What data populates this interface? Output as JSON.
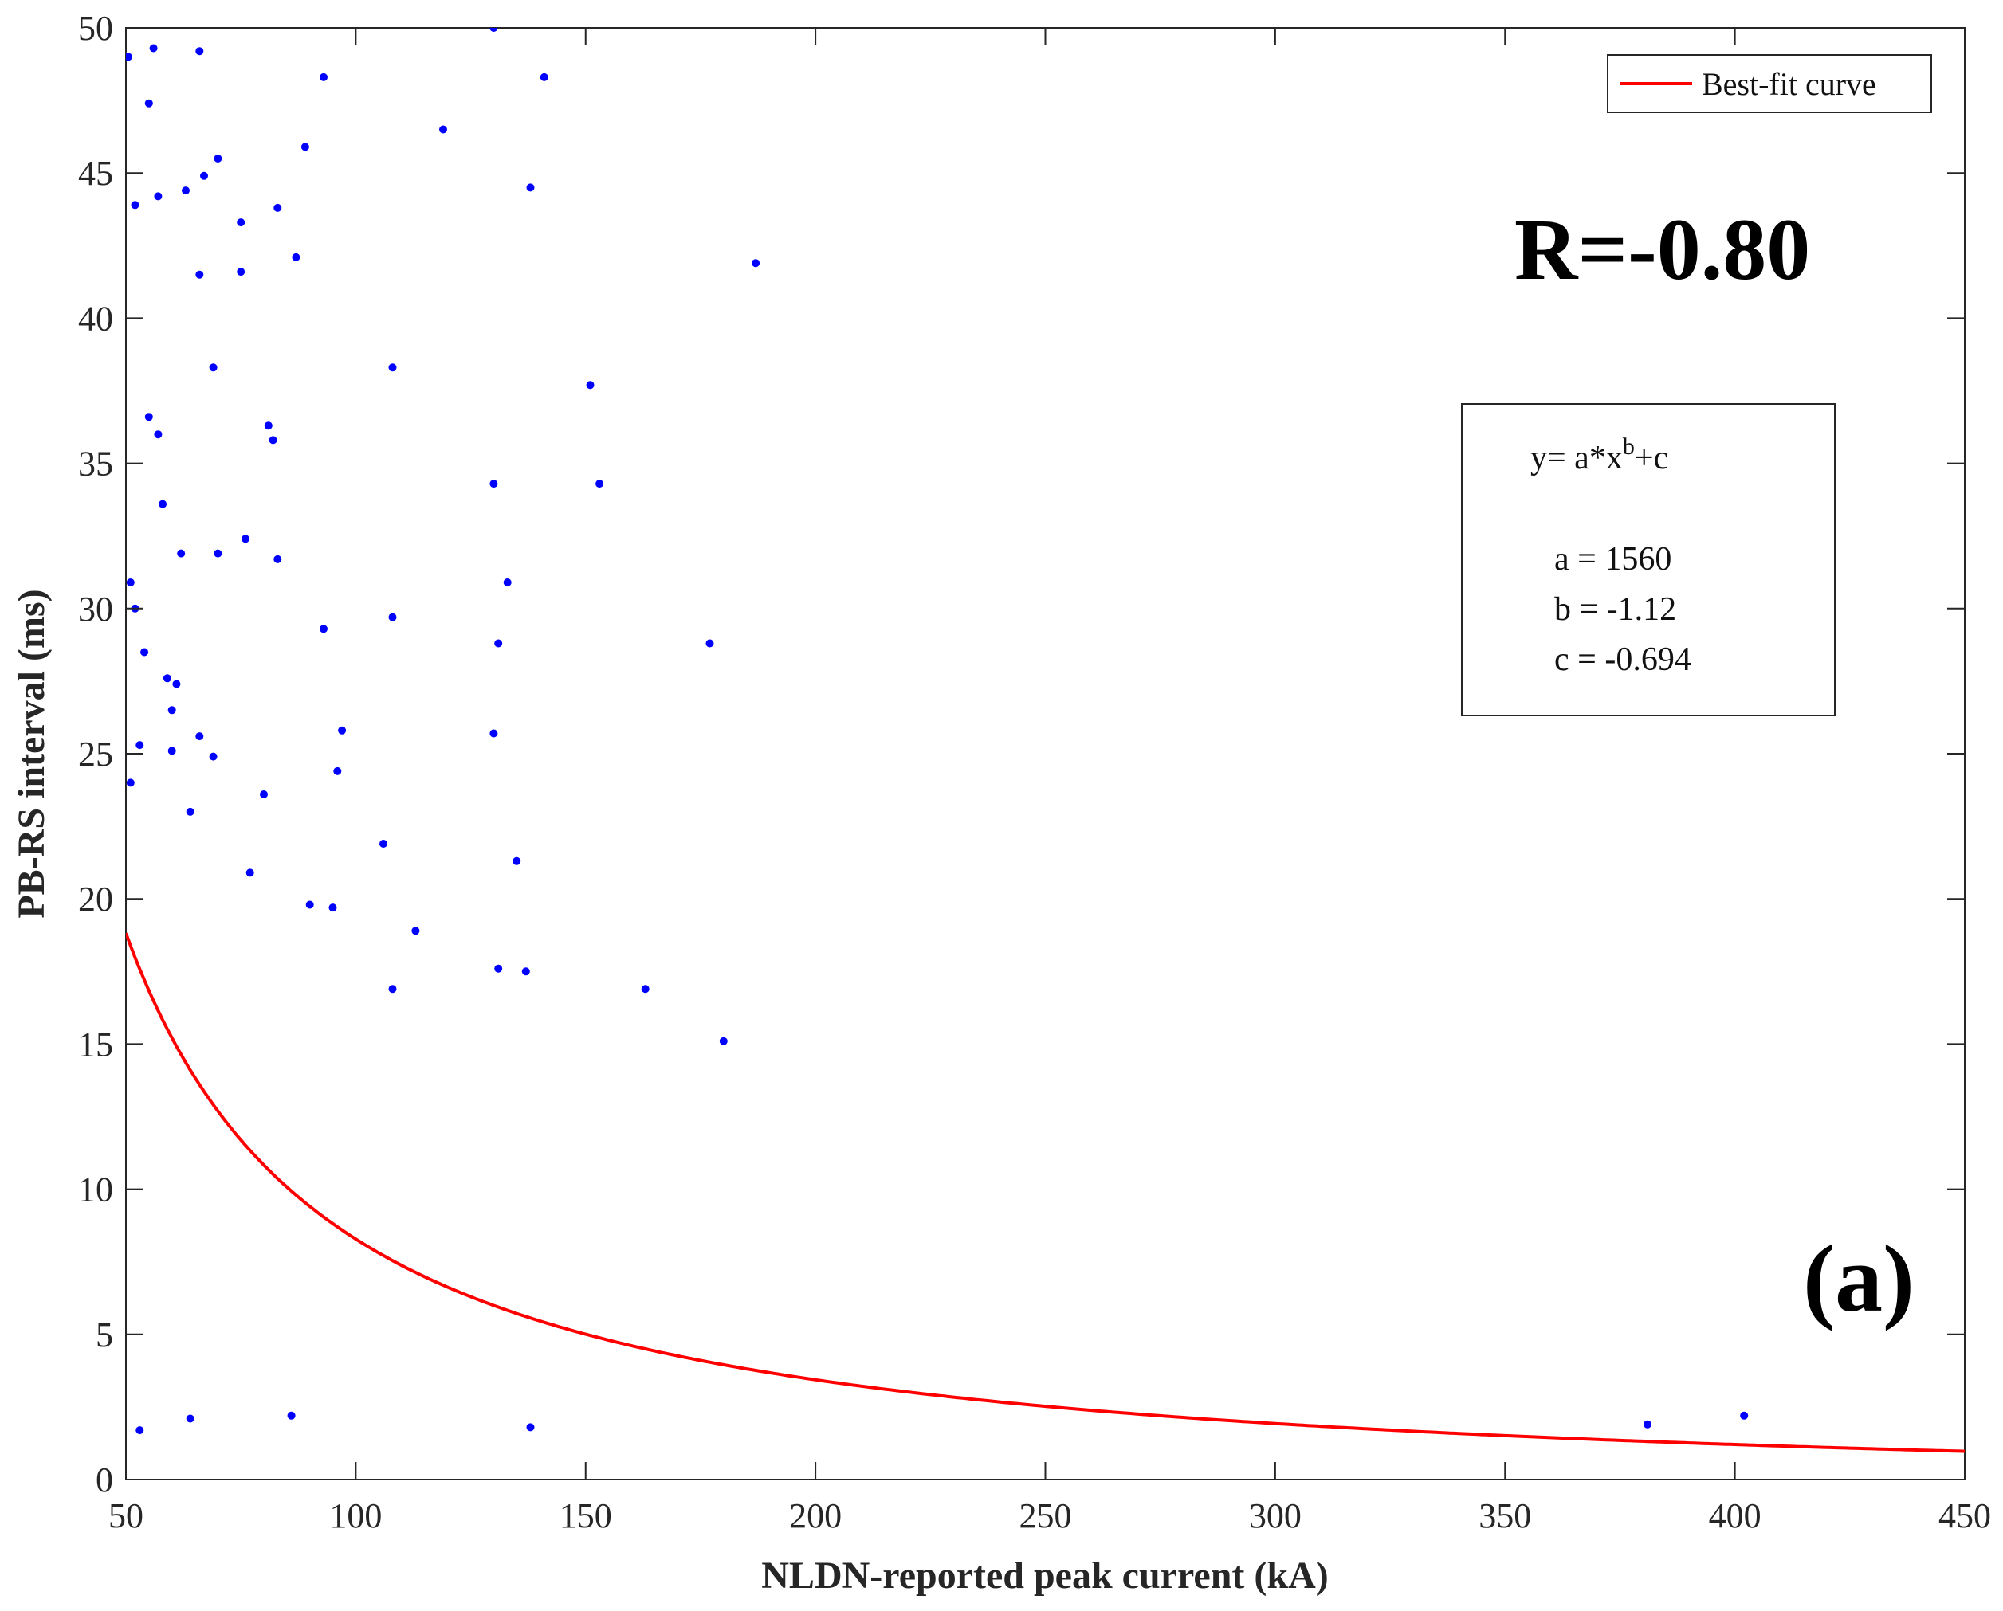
{
  "chart_data": {
    "type": "scatter",
    "xlabel": "NLDN-reported peak current (kA)",
    "ylabel": "PB-RS interval (ms)",
    "xlim": [
      50,
      450
    ],
    "ylim": [
      0,
      50
    ],
    "xticks": [
      "50",
      "100",
      "150",
      "200",
      "250",
      "300",
      "350",
      "400",
      "450"
    ],
    "yticks": [
      "0",
      "5",
      "10",
      "15",
      "20",
      "25",
      "30",
      "35",
      "40",
      "45",
      "50"
    ],
    "grid": false,
    "legend": {
      "position": "top-right",
      "entries": [
        "Best-fit curve"
      ]
    },
    "colors": {
      "points": "#0000ff",
      "fit": "#ff0000"
    },
    "fit": {
      "name": "Best-fit curve",
      "model": "y = a*x^b + c",
      "a": 1560,
      "b": -1.12,
      "c": -0.694,
      "x_range": [
        50,
        450
      ]
    },
    "annotations": {
      "correlation": "R=-0.80",
      "panel": "(a)",
      "equation_prefix": "y= a*x",
      "equation_sup": "b",
      "equation_suffix": "+c",
      "param_a": "a = 1560",
      "param_b": "b = -1.12",
      "param_c": "c = -0.694"
    },
    "series": [
      {
        "values": [
          [
            50.5,
            49.0
          ],
          [
            56,
            49.3
          ],
          [
            66,
            49.2
          ],
          [
            130,
            50.0
          ],
          [
            55,
            47.4
          ],
          [
            93,
            48.3
          ],
          [
            141,
            48.3
          ],
          [
            119,
            46.5
          ],
          [
            70,
            45.5
          ],
          [
            67,
            44.9
          ],
          [
            89,
            45.9
          ],
          [
            52,
            43.9
          ],
          [
            57,
            44.2
          ],
          [
            63,
            44.4
          ],
          [
            138,
            44.5
          ],
          [
            75,
            43.3
          ],
          [
            83,
            43.8
          ],
          [
            87,
            42.1
          ],
          [
            187,
            41.9
          ],
          [
            66,
            41.5
          ],
          [
            75,
            41.6
          ],
          [
            69,
            38.3
          ],
          [
            108,
            38.3
          ],
          [
            151,
            37.7
          ],
          [
            55,
            36.6
          ],
          [
            81,
            36.3
          ],
          [
            82,
            35.8
          ],
          [
            57,
            36.0
          ],
          [
            130,
            34.3
          ],
          [
            153,
            34.3
          ],
          [
            58,
            33.6
          ],
          [
            76,
            32.4
          ],
          [
            62,
            31.9
          ],
          [
            70,
            31.9
          ],
          [
            83,
            31.7
          ],
          [
            51,
            30.9
          ],
          [
            133,
            30.9
          ],
          [
            52,
            30.0
          ],
          [
            108,
            29.7
          ],
          [
            93,
            29.3
          ],
          [
            131,
            28.8
          ],
          [
            177,
            28.8
          ],
          [
            54,
            28.5
          ],
          [
            59,
            27.6
          ],
          [
            61,
            27.4
          ],
          [
            60,
            26.5
          ],
          [
            97,
            25.8
          ],
          [
            130,
            25.7
          ],
          [
            66,
            25.6
          ],
          [
            53,
            25.3
          ],
          [
            60,
            25.1
          ],
          [
            69,
            24.9
          ],
          [
            96,
            24.4
          ],
          [
            51,
            24.0
          ],
          [
            80,
            23.6
          ],
          [
            64,
            23.0
          ],
          [
            106,
            21.9
          ],
          [
            135,
            21.3
          ],
          [
            77,
            20.9
          ],
          [
            90,
            19.8
          ],
          [
            95,
            19.7
          ],
          [
            113,
            18.9
          ],
          [
            137,
            17.5
          ],
          [
            131,
            17.6
          ],
          [
            163,
            16.9
          ],
          [
            108,
            16.9
          ],
          [
            180,
            15.1
          ],
          [
            53,
            1.7
          ],
          [
            64,
            2.1
          ],
          [
            138,
            1.8
          ],
          [
            86,
            2.2
          ],
          [
            381,
            1.9
          ],
          [
            402,
            2.2
          ]
        ]
      }
    ]
  }
}
